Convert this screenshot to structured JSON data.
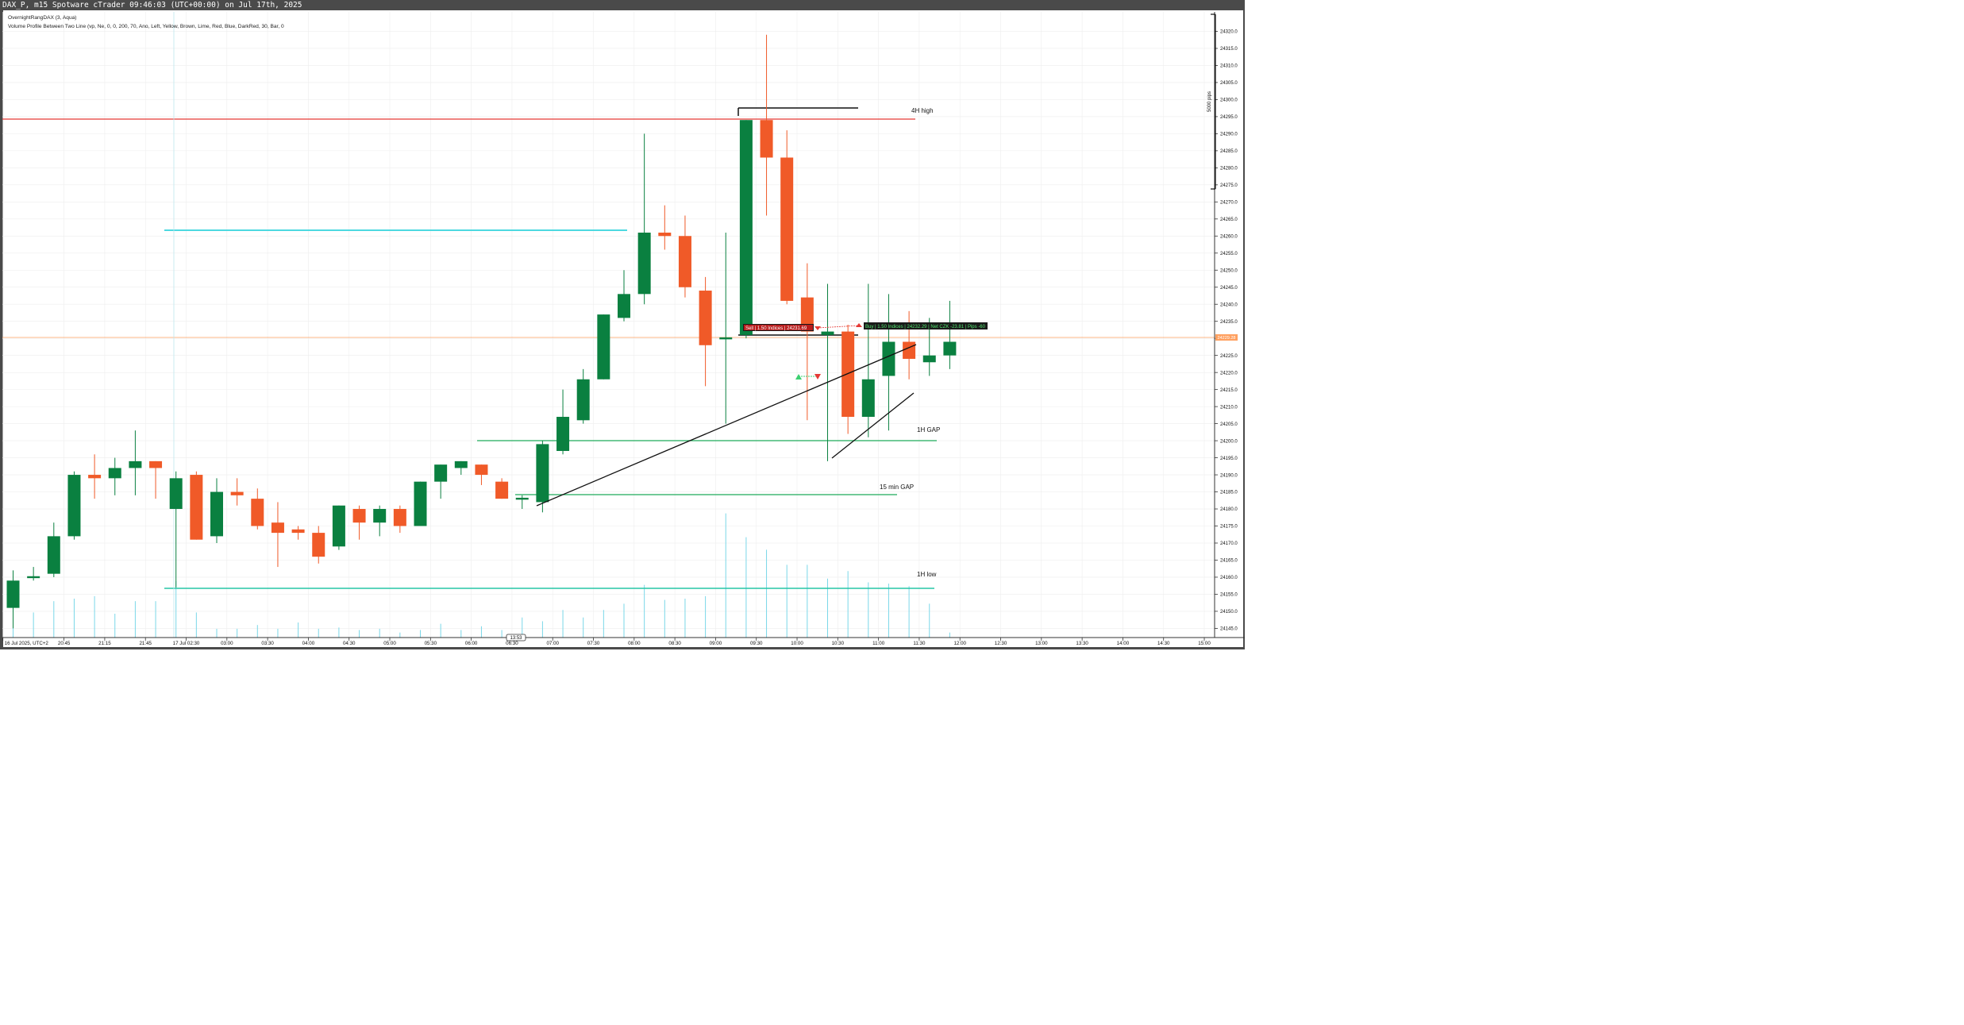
{
  "window": {
    "title": "DAX_P, m15 Spotware cTrader 09:46:03 (UTC+00:00) on Jul 17th, 2025"
  },
  "indicators": [
    "OvernightRangDAX (3, Aqua)",
    "Volume Profile Between Two Line (vp, Ne, 0, 0, 200, 70, Ano, Left, Yellow, Brown, Lime, Red, Blue, DarkRed, 30, Bar, 0"
  ],
  "colors": {
    "bull": "#0a8040",
    "bear": "#f05a28",
    "grid": "#eeeeee",
    "red_line": "#e53935",
    "cyan_line": "#4dd9e0",
    "green_line": "#1faa5a",
    "teal_line": "#26c6a6",
    "orange_price": "#ffa060",
    "volume": "#7ad7e8"
  },
  "annotations": {
    "h4_high": "4H high",
    "gap_1h": "1H GAP",
    "gap_15m": "15 min GAP",
    "low_1h": "1H low",
    "pips_scale": "5000 pips",
    "current_price": "24229.28",
    "sell_trade": "Sell | 1.50 Indices | 24231.69",
    "buy_trade": "Buy | 1.50 Indices | 24232.29 | Net CZK -23.81 | Pips -60",
    "cursor_bubble": "13:53"
  },
  "chart_data": {
    "type": "candlestick",
    "symbol": "DAX_P",
    "timeframe": "m15",
    "ylim": [
      24143,
      24325
    ],
    "y_ticks": [
      24145,
      24150,
      24155,
      24160,
      24165,
      24170,
      24175,
      24180,
      24185,
      24190,
      24195,
      24200,
      24205,
      24210,
      24215,
      24220,
      24225,
      24230,
      24235,
      24240,
      24245,
      24250,
      24255,
      24260,
      24265,
      24270,
      24275,
      24280,
      24285,
      24290,
      24295,
      24300,
      24305,
      24310,
      24315,
      24320
    ],
    "x_tick_labels": [
      {
        "index": -0.5,
        "label": "16 Jul 2025, UTC+2"
      },
      {
        "index": 2.5,
        "label": "20:45"
      },
      {
        "index": 4.5,
        "label": "21:15"
      },
      {
        "index": 6.5,
        "label": "21:45"
      },
      {
        "index": 8.5,
        "label": "17 Jul 02:30"
      },
      {
        "index": 10.5,
        "label": "03:00"
      },
      {
        "index": 12.5,
        "label": "03:30"
      },
      {
        "index": 14.5,
        "label": "04:00"
      },
      {
        "index": 16.5,
        "label": "04:30"
      },
      {
        "index": 18.5,
        "label": "05:00"
      },
      {
        "index": 20.5,
        "label": "05:30"
      },
      {
        "index": 22.5,
        "label": "06:00"
      },
      {
        "index": 24.5,
        "label": "06:30"
      },
      {
        "index": 26.5,
        "label": "07:00"
      },
      {
        "index": 28.5,
        "label": "07:30"
      },
      {
        "index": 30.5,
        "label": "08:00"
      },
      {
        "index": 32.5,
        "label": "08:30"
      },
      {
        "index": 34.5,
        "label": "09:00"
      },
      {
        "index": 36.5,
        "label": "09:30"
      },
      {
        "index": 38.5,
        "label": "10:00"
      },
      {
        "index": 40.5,
        "label": "10:30"
      },
      {
        "index": 42.5,
        "label": "11:00"
      },
      {
        "index": 44.5,
        "label": "11:30"
      },
      {
        "index": 46.5,
        "label": "12:00"
      },
      {
        "index": 48.5,
        "label": "12:30"
      },
      {
        "index": 50.5,
        "label": "13:00"
      },
      {
        "index": 52.5,
        "label": "13:30"
      },
      {
        "index": 54.5,
        "label": "14:00"
      },
      {
        "index": 56.5,
        "label": "14:30"
      },
      {
        "index": 58.5,
        "label": "15:00"
      }
    ],
    "candles": [
      [
        24151,
        24162,
        24145,
        24159
      ],
      [
        24160,
        24163,
        24159,
        24160
      ],
      [
        24161,
        24176,
        24160,
        24172
      ],
      [
        24172,
        24191,
        24171,
        24190
      ],
      [
        24190,
        24196,
        24183,
        24189
      ],
      [
        24189,
        24195,
        24184,
        24192
      ],
      [
        24192,
        24203,
        24184,
        24194
      ],
      [
        24194,
        24194,
        24183,
        24192
      ],
      [
        24180,
        24191,
        24157,
        24189
      ],
      [
        24190,
        24191,
        24171,
        24171
      ],
      [
        24172,
        24189,
        24170,
        24185
      ],
      [
        24185,
        24189,
        24181,
        24184
      ],
      [
        24183,
        24186,
        24174,
        24175
      ],
      [
        24176,
        24182,
        24163,
        24173
      ],
      [
        24174,
        24175,
        24171,
        24173
      ],
      [
        24173,
        24175,
        24164,
        24166
      ],
      [
        24169,
        24181,
        24168,
        24181
      ],
      [
        24180,
        24181,
        24171,
        24176
      ],
      [
        24176,
        24181,
        24172,
        24180
      ],
      [
        24180,
        24181,
        24173,
        24175
      ],
      [
        24175,
        24188,
        24175,
        24188
      ],
      [
        24188,
        24193,
        24183,
        24193
      ],
      [
        24192,
        24194,
        24190,
        24194
      ],
      [
        24193,
        24193,
        24187,
        24190
      ],
      [
        24188,
        24189,
        24183,
        24183
      ],
      [
        24183,
        24184,
        24180,
        24183
      ],
      [
        24182,
        24200,
        24179,
        24199
      ],
      [
        24197,
        24215,
        24196,
        24207
      ],
      [
        24206,
        24221,
        24205,
        24218
      ],
      [
        24218,
        24237,
        24218,
        24237
      ],
      [
        24236,
        24250,
        24235,
        24243
      ],
      [
        24243,
        24290,
        24240,
        24261
      ],
      [
        24261,
        24269,
        24256,
        24260
      ],
      [
        24260,
        24266,
        24242,
        24245
      ],
      [
        24244,
        24248,
        24216,
        24228
      ],
      [
        24230,
        24261,
        24205,
        24230
      ],
      [
        24231,
        24294,
        24230,
        24294
      ],
      [
        24294,
        24319,
        24266,
        24283
      ],
      [
        24283,
        24291,
        24240,
        24241
      ],
      [
        24242,
        24252,
        24206,
        24232
      ],
      [
        24231,
        24246,
        24194,
        24232
      ],
      [
        24232,
        24234,
        24202,
        24207
      ],
      [
        24207,
        24246,
        24201,
        24218
      ],
      [
        24219,
        24243,
        24203,
        24229
      ],
      [
        24229,
        24238,
        24218,
        24224
      ],
      [
        24223,
        24236,
        24219,
        24225
      ],
      [
        24225,
        24241,
        24221,
        24229
      ]
    ],
    "volume_rel": [
      0.11,
      0.2,
      0.29,
      0.31,
      0.33,
      0.19,
      0.29,
      0.29,
      0.45,
      0.2,
      0.07,
      0.07,
      0.1,
      0.07,
      0.12,
      0.07,
      0.08,
      0.06,
      0.07,
      0.04,
      0.06,
      0.11,
      0.06,
      0.09,
      0.06,
      0.16,
      0.13,
      0.22,
      0.16,
      0.22,
      0.27,
      0.42,
      0.3,
      0.31,
      0.33,
      0.99,
      0.8,
      0.7,
      0.58,
      0.58,
      0.47,
      0.53,
      0.44,
      0.43,
      0.41,
      0.27,
      0.04
    ]
  }
}
